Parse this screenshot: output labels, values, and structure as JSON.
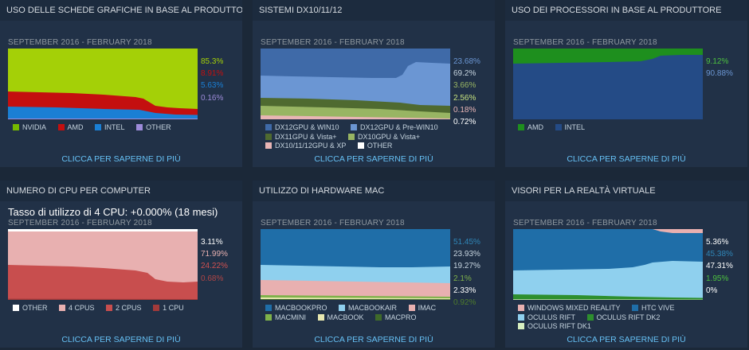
{
  "learn_more": "CLICCA PER SAPERNE DI PIÙ",
  "panels": [
    {
      "title": "USO DELLE SCHEDE GRAFICHE IN BASE AL PRODUTTORE",
      "subtitle": "SEPTEMBER 2016 - FEBRUARY 2018",
      "values": [
        {
          "text": "85.3%",
          "color": "#a4d007"
        },
        {
          "text": "8.91%",
          "color": "#c40f0f"
        },
        {
          "text": "5.63%",
          "color": "#1a7fd4"
        },
        {
          "text": "0.16%",
          "color": "#9d8bd9"
        }
      ],
      "legend": [
        {
          "label": "NVIDIA",
          "color": "#76b900"
        },
        {
          "label": "AMD",
          "color": "#c40f0f"
        },
        {
          "label": "INTEL",
          "color": "#1a7fd4"
        },
        {
          "label": "OTHER",
          "color": "#9d8bd9"
        }
      ]
    },
    {
      "title": "SISTEMI DX10/11/12",
      "subtitle": "SEPTEMBER 2016 - FEBRUARY 2018",
      "values": [
        {
          "text": "23.68%",
          "color": "#6b96d3"
        },
        {
          "text": "69.2%",
          "color": "#c6d4df"
        },
        {
          "text": "3.66%",
          "color": "#98b563"
        },
        {
          "text": "2.56%",
          "color": "#c6e27e"
        },
        {
          "text": "0.18%",
          "color": "#e8b5b5"
        },
        {
          "text": "0.72%",
          "color": "#ffffff"
        }
      ],
      "legend": [
        {
          "label": "DX12GPU & WIN10",
          "color": "#3f6aa8"
        },
        {
          "label": "DX12GPU & Pre-WIN10",
          "color": "#6b96d3"
        },
        {
          "label": "DX11GPU & Vista+",
          "color": "#4f6a30"
        },
        {
          "label": "DX10GPU & Vista+",
          "color": "#98b563"
        },
        {
          "label": "DX10/11/12GPU & XP",
          "color": "#e8b5b5"
        },
        {
          "label": "OTHER",
          "color": "#ffffff"
        }
      ]
    },
    {
      "title": "USO DEI PROCESSORI IN BASE AL PRODUTTORE",
      "subtitle": "SEPTEMBER 2016 - FEBRUARY 2018",
      "values": [
        {
          "text": "9.12%",
          "color": "#4cc03f"
        },
        {
          "text": "90.88%",
          "color": "#6b96d3"
        }
      ],
      "legend": [
        {
          "label": "AMD",
          "color": "#1e8f1e"
        },
        {
          "label": "INTEL",
          "color": "#244b86"
        }
      ]
    },
    {
      "title": "NUMERO DI CPU PER COMPUTER",
      "note": "Tasso di utilizzo di 4 CPU: +0.000% (18 mesi)",
      "subtitle": "SEPTEMBER 2016 - FEBRUARY 2018",
      "values": [
        {
          "text": "3.11%",
          "color": "#ffffff"
        },
        {
          "text": "71.99%",
          "color": "#e8b0b0"
        },
        {
          "text": "24.22%",
          "color": "#d05050"
        },
        {
          "text": "0.68%",
          "color": "#b04545"
        }
      ],
      "legend": [
        {
          "label": "OTHER",
          "color": "#ffffff"
        },
        {
          "label": "4 CPUS",
          "color": "#e8b0b0"
        },
        {
          "label": "2 CPUS",
          "color": "#c84e4e"
        },
        {
          "label": "1 CPU",
          "color": "#a23a3a"
        }
      ]
    },
    {
      "title": "UTILIZZO DI HARDWARE MAC",
      "subtitle": "SEPTEMBER 2016 - FEBRUARY 2018",
      "values": [
        {
          "text": "51.45%",
          "color": "#2f86b8"
        },
        {
          "text": "23.93%",
          "color": "#c6d4df"
        },
        {
          "text": "19.27%",
          "color": "#c6d4df"
        },
        {
          "text": "2.1%",
          "color": "#7fb24a"
        },
        {
          "text": "2.33%",
          "color": "#ffffff"
        },
        {
          "text": "0.92%",
          "color": "#4f7c2c"
        }
      ],
      "legend": [
        {
          "label": "MACBOOKPRO",
          "color": "#1f6ea8"
        },
        {
          "label": "MACBOOKAIR",
          "color": "#8fd0ee"
        },
        {
          "label": "IMAC",
          "color": "#e8b0b0"
        },
        {
          "label": "MACMINI",
          "color": "#7fb24a"
        },
        {
          "label": "MACBOOK",
          "color": "#e8e8b0"
        },
        {
          "label": "MACPRO",
          "color": "#3f6a2a"
        }
      ]
    },
    {
      "title": "VISORI PER LA REALTÀ VIRTUALE",
      "subtitle": "SEPTEMBER 2016 - FEBRUARY 2018",
      "values": [
        {
          "text": "5.36%",
          "color": "#ffffff"
        },
        {
          "text": "45.38%",
          "color": "#2f86b8"
        },
        {
          "text": "47.31%",
          "color": "#ffffff"
        },
        {
          "text": "1.95%",
          "color": "#4cc03f"
        },
        {
          "text": "0%",
          "color": "#ffffff"
        }
      ],
      "legend": [
        {
          "label": "WINDOWS MIXED REALITY",
          "color": "#e8b0b0"
        },
        {
          "label": "HTC VIVE",
          "color": "#1f6ea8"
        },
        {
          "label": "OCULUS RIFT",
          "color": "#8fd0ee"
        },
        {
          "label": "OCULUS RIFT DK2",
          "color": "#2e8f2e"
        },
        {
          "label": "OCULUS RIFT DK1",
          "color": "#d8f0c0"
        }
      ]
    }
  ]
}
